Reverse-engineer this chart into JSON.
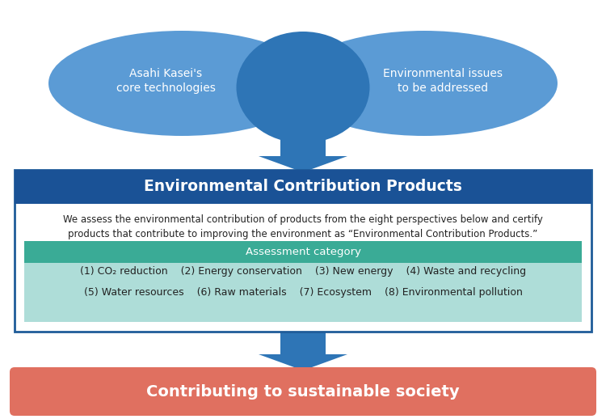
{
  "bg_color": "#ffffff",
  "ellipse_left_color": "#5b9bd5",
  "ellipse_right_color": "#5b9bd5",
  "ellipse_overlap_color": "#2e75b6",
  "ellipse_left_text": "Asahi Kasei's\ncore technologies",
  "ellipse_right_text": "Environmental issues\nto be addressed",
  "arrow_color": "#2e75b6",
  "main_box_border_color": "#1f5c99",
  "main_box_header_color": "#1a5296",
  "main_box_header_text": "Environmental Contribution Products",
  "main_box_header_text_color": "#ffffff",
  "description_text_line1": "We assess the environmental contribution of products from the eight perspectives below and certify",
  "description_text_line2": "products that contribute to improving the environment as “Environmental Contribution Products.”",
  "description_text_color": "#222222",
  "assessment_header_bg": "#3aab96",
  "assessment_header_text": "Assessment category",
  "assessment_header_text_color": "#ffffff",
  "assessment_body_bg": "#aeddd8",
  "assessment_items_row1": "(1) CO₂ reduction    (2) Energy conservation    (3) New energy    (4) Waste and recycling",
  "assessment_items_row2": "(5) Water resources    (6) Raw materials    (7) Ecosystem    (8) Environmental pollution",
  "assessment_items_color": "#222222",
  "bottom_box_color": "#e07060",
  "bottom_box_text": "Contributing to sustainable society",
  "bottom_box_text_color": "#ffffff",
  "figsize": [
    7.5,
    5.18
  ],
  "dpi": 100,
  "xlim": [
    0,
    750
  ],
  "ylim": [
    0,
    518
  ]
}
